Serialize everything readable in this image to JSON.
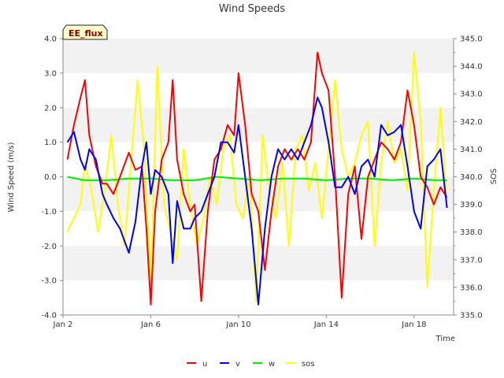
{
  "chart_data": {
    "type": "line",
    "title": "Wind Speeds",
    "site_label": "EE_flux",
    "xlabel": "Time",
    "ylabel": "Wind Speed (m/s)",
    "y2label": "SOS",
    "x_ticks": [
      "Jan 2",
      "Jan 6",
      "Jan 10",
      "Jan 14",
      "Jan 18"
    ],
    "x_tick_days": [
      2,
      6,
      10,
      14,
      18
    ],
    "xlim_days": [
      2,
      19.8
    ],
    "ylim": [
      -4.0,
      4.0
    ],
    "y_ticks": [
      "-4.0",
      "-3.0",
      "-2.0",
      "-1.0",
      "0.0",
      "1.0",
      "2.0",
      "3.0",
      "4.0"
    ],
    "y2lim": [
      335.0,
      345.0
    ],
    "y2_ticks": [
      "335.0",
      "336.0",
      "337.0",
      "338.0",
      "339.0",
      "340.0",
      "341.0",
      "342.0",
      "343.0",
      "344.0",
      "345.0"
    ],
    "grid": "horizontal bands",
    "legend_position": "bottom",
    "colors": {
      "u": "#ff0000",
      "v": "#0000ff",
      "w": "#00ee00",
      "sos": "#ffff00"
    },
    "series": [
      {
        "name": "u",
        "axis": "left",
        "x": [
          2.2,
          2.5,
          2.8,
          3.0,
          3.2,
          3.5,
          3.8,
          4.0,
          4.3,
          4.6,
          5.0,
          5.3,
          5.6,
          5.8,
          6.0,
          6.2,
          6.5,
          6.8,
          7.0,
          7.2,
          7.5,
          7.8,
          8.0,
          8.3,
          8.6,
          8.9,
          9.2,
          9.5,
          9.8,
          10.0,
          10.3,
          10.6,
          10.9,
          11.2,
          11.5,
          11.8,
          12.1,
          12.4,
          12.7,
          13.0,
          13.3,
          13.6,
          13.8,
          14.1,
          14.4,
          14.7,
          15.0,
          15.3,
          15.6,
          15.9,
          16.2,
          16.5,
          16.8,
          17.1,
          17.4,
          17.7,
          18.0,
          18.3,
          18.6,
          18.9,
          19.2,
          19.5
        ],
        "values": [
          0.5,
          1.5,
          2.3,
          2.8,
          1.2,
          0.3,
          -0.2,
          -0.2,
          -0.5,
          0.0,
          0.7,
          0.2,
          0.3,
          -1.5,
          -3.7,
          -1.0,
          0.5,
          1.0,
          2.8,
          0.5,
          -0.5,
          -1.0,
          -0.8,
          -3.6,
          -1.0,
          0.5,
          0.8,
          1.5,
          1.2,
          3.0,
          1.5,
          -0.5,
          -1.0,
          -2.7,
          -1.0,
          0.3,
          0.8,
          0.5,
          0.8,
          0.5,
          1.0,
          3.6,
          3.0,
          2.5,
          0.0,
          -3.5,
          -0.5,
          0.3,
          -1.8,
          0.0,
          0.5,
          1.0,
          0.8,
          0.5,
          1.0,
          2.5,
          1.5,
          0.0,
          -0.3,
          -0.8,
          -0.3,
          -0.6
        ]
      },
      {
        "name": "v",
        "axis": "left",
        "x": [
          2.2,
          2.5,
          2.8,
          3.0,
          3.2,
          3.5,
          3.8,
          4.0,
          4.3,
          4.6,
          5.0,
          5.3,
          5.6,
          5.8,
          6.0,
          6.2,
          6.5,
          6.8,
          7.0,
          7.2,
          7.5,
          7.8,
          8.0,
          8.3,
          8.6,
          8.9,
          9.2,
          9.5,
          9.8,
          10.0,
          10.3,
          10.6,
          10.9,
          11.2,
          11.5,
          11.8,
          12.1,
          12.4,
          12.7,
          13.0,
          13.3,
          13.6,
          13.8,
          14.1,
          14.4,
          14.7,
          15.0,
          15.3,
          15.6,
          15.9,
          16.2,
          16.5,
          16.8,
          17.1,
          17.4,
          17.7,
          18.0,
          18.3,
          18.6,
          18.9,
          19.2,
          19.5
        ],
        "values": [
          1.0,
          1.3,
          0.5,
          0.2,
          0.8,
          0.5,
          -0.5,
          -0.8,
          -1.2,
          -1.5,
          -2.2,
          -1.3,
          0.3,
          1.0,
          -0.5,
          0.2,
          0.0,
          -0.5,
          -2.5,
          -0.7,
          -1.5,
          -1.5,
          -1.2,
          -1.0,
          -0.5,
          0.0,
          1.0,
          1.0,
          0.7,
          1.5,
          0.0,
          -1.5,
          -3.7,
          -1.5,
          0.0,
          0.8,
          0.5,
          0.8,
          0.5,
          1.0,
          1.5,
          2.3,
          2.0,
          1.0,
          -0.3,
          -0.3,
          0.0,
          -0.5,
          0.3,
          0.5,
          0.0,
          1.5,
          1.2,
          1.3,
          1.5,
          0.3,
          -1.0,
          -1.5,
          0.3,
          0.5,
          0.8,
          -0.9
        ]
      },
      {
        "name": "w",
        "axis": "left",
        "x": [
          2.2,
          3.0,
          4.0,
          5.0,
          6.0,
          7.0,
          8.0,
          9.0,
          10.0,
          11.0,
          12.0,
          13.0,
          14.0,
          15.0,
          16.0,
          17.0,
          18.0,
          19.0,
          19.5
        ],
        "values": [
          0.0,
          -0.1,
          -0.1,
          -0.05,
          -0.05,
          -0.1,
          -0.1,
          0.0,
          -0.05,
          -0.1,
          -0.05,
          -0.05,
          -0.1,
          -0.05,
          -0.05,
          -0.1,
          -0.05,
          -0.1,
          -0.1
        ]
      },
      {
        "name": "sos",
        "axis": "right",
        "x": [
          2.2,
          2.5,
          2.8,
          3.0,
          3.3,
          3.6,
          3.9,
          4.2,
          4.5,
          4.8,
          5.1,
          5.4,
          5.7,
          6.0,
          6.3,
          6.6,
          6.9,
          7.2,
          7.5,
          7.8,
          8.1,
          8.4,
          8.7,
          9.0,
          9.3,
          9.6,
          9.9,
          10.2,
          10.5,
          10.8,
          11.1,
          11.4,
          11.7,
          12.0,
          12.3,
          12.6,
          12.9,
          13.2,
          13.5,
          13.8,
          14.1,
          14.4,
          14.7,
          15.0,
          15.3,
          15.6,
          15.9,
          16.2,
          16.5,
          16.8,
          17.1,
          17.4,
          17.7,
          18.0,
          18.3,
          18.6,
          18.9,
          19.2,
          19.5
        ],
        "values": [
          338.0,
          338.5,
          339.0,
          340.5,
          339.5,
          338.0,
          339.5,
          341.5,
          339.0,
          337.5,
          340.5,
          343.5,
          341.0,
          336.0,
          344.0,
          339.0,
          338.0,
          337.0,
          341.0,
          339.0,
          337.5,
          338.5,
          340.0,
          339.0,
          341.0,
          341.5,
          339.0,
          338.5,
          340.0,
          335.5,
          341.5,
          339.5,
          338.5,
          340.5,
          337.5,
          341.0,
          341.5,
          339.5,
          340.5,
          338.5,
          341.0,
          343.5,
          341.0,
          340.0,
          340.5,
          341.5,
          342.0,
          337.5,
          340.5,
          342.0,
          340.5,
          341.0,
          339.5,
          344.5,
          342.0,
          336.0,
          339.5,
          342.5,
          339.0
        ]
      }
    ]
  }
}
